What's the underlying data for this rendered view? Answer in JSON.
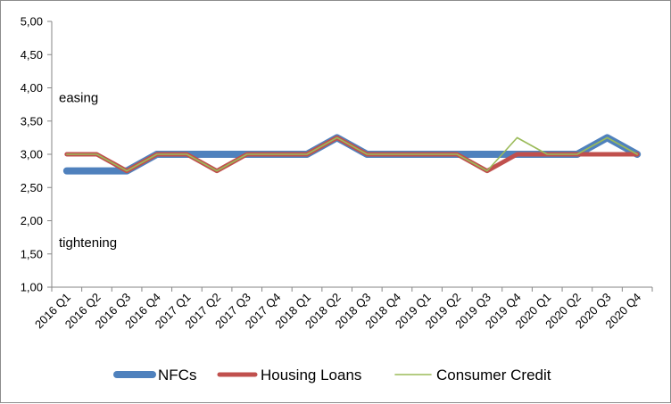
{
  "chart_data": {
    "type": "line",
    "categories": [
      "2016 Q1",
      "2016 Q2",
      "2016 Q3",
      "2016 Q4",
      "2017 Q1",
      "2017 Q2",
      "2017 Q3",
      "2017 Q4",
      "2018 Q1",
      "2018 Q2",
      "2018 Q3",
      "2018 Q4",
      "2019 Q1",
      "2019 Q2",
      "2019 Q3",
      "2019 Q4",
      "2020 Q1",
      "2020 Q2",
      "2020 Q3",
      "2020 Q4"
    ],
    "series": [
      {
        "name": "NFCs",
        "color": "#4f81bd",
        "values": [
          2.75,
          2.75,
          2.75,
          3.0,
          3.0,
          3.0,
          3.0,
          3.0,
          3.0,
          3.25,
          3.0,
          3.0,
          3.0,
          3.0,
          3.0,
          3.0,
          3.0,
          3.0,
          3.25,
          3.0
        ]
      },
      {
        "name": "Housing Loans",
        "color": "#c0504d",
        "values": [
          3.0,
          3.0,
          2.75,
          3.0,
          3.0,
          2.75,
          3.0,
          3.0,
          3.0,
          3.25,
          3.0,
          3.0,
          3.0,
          3.0,
          2.75,
          3.0,
          3.0,
          3.0,
          3.0,
          3.0
        ]
      },
      {
        "name": "Consumer Credit",
        "color": "#9bbb59",
        "values": [
          3.0,
          3.0,
          2.75,
          3.0,
          3.0,
          2.75,
          3.0,
          3.0,
          3.0,
          3.25,
          3.0,
          3.0,
          3.0,
          3.0,
          2.75,
          3.25,
          3.0,
          3.0,
          3.25,
          3.0
        ]
      }
    ],
    "ylim": [
      1.0,
      5.0
    ],
    "yticks": [
      "1,00",
      "1,50",
      "2,00",
      "2,50",
      "3,00",
      "3,50",
      "4,00",
      "4,50",
      "5,00"
    ],
    "annotations": [
      {
        "text": "easing",
        "at": 3.85
      },
      {
        "text": "tightening",
        "at": 1.67
      }
    ],
    "legend_position": "bottom",
    "grid": false
  }
}
